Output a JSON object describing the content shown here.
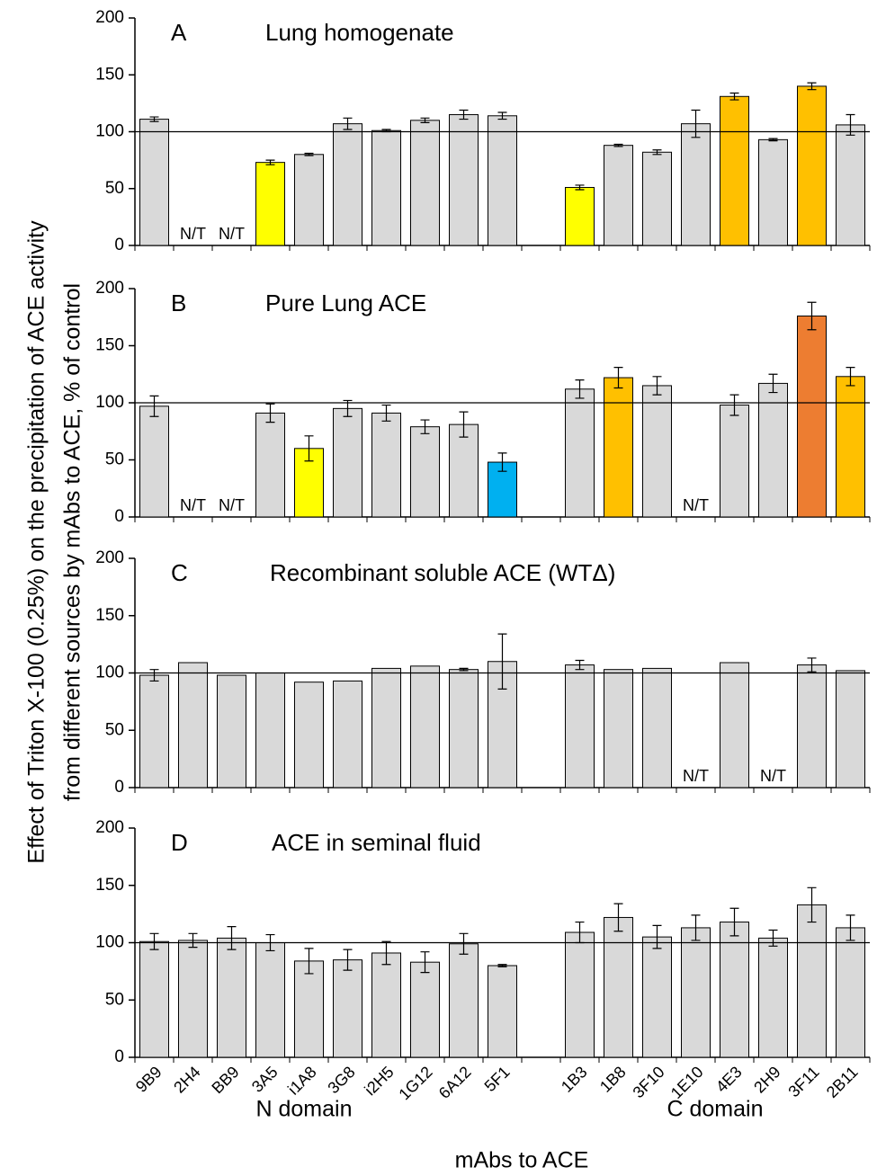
{
  "ylabel": [
    "Effect of Triton  X-100  (0.25%)  on the precipitation of  ACE activity",
    "from different sources by mAbs to ACE, % of  control"
  ],
  "chart_data": [
    {
      "type": "bar",
      "letter": "A",
      "title": "Lung homogenate",
      "values": [
        111,
        null,
        null,
        73,
        80,
        107,
        101,
        110,
        115,
        114,
        null,
        51,
        88,
        82,
        107,
        131,
        93,
        140,
        106
      ],
      "errors": [
        2,
        null,
        null,
        2,
        1,
        5,
        1,
        2,
        4,
        3,
        null,
        2,
        1,
        2,
        12,
        3,
        1,
        3,
        9
      ],
      "value_labels": [
        null,
        "N/T",
        "N/T",
        null,
        null,
        null,
        null,
        null,
        null,
        null,
        null,
        null,
        null,
        null,
        null,
        null,
        null,
        null,
        null
      ],
      "colors": [
        "#d9d9d9",
        "#d9d9d9",
        "#d9d9d9",
        "#ffff00",
        "#d9d9d9",
        "#d9d9d9",
        "#d9d9d9",
        "#d9d9d9",
        "#d9d9d9",
        "#d9d9d9",
        "#d9d9d9",
        "#ffff00",
        "#d9d9d9",
        "#d9d9d9",
        "#d9d9d9",
        "#ffc000",
        "#d9d9d9",
        "#ffc000",
        "#d9d9d9"
      ],
      "reference_line": 100,
      "ylim": [
        0,
        200
      ],
      "yticks": [
        0,
        50,
        100,
        150,
        200
      ]
    },
    {
      "type": "bar",
      "letter": "B",
      "title": "Pure Lung ACE",
      "values": [
        97,
        null,
        null,
        91,
        60,
        95,
        91,
        79,
        81,
        48,
        null,
        112,
        122,
        115,
        null,
        98,
        117,
        176,
        123
      ],
      "errors": [
        9,
        null,
        null,
        8,
        11,
        7,
        7,
        6,
        11,
        8,
        null,
        8,
        9,
        8,
        null,
        9,
        8,
        12,
        8
      ],
      "value_labels": [
        null,
        "N/T",
        "N/T",
        null,
        null,
        null,
        null,
        null,
        null,
        null,
        null,
        null,
        null,
        null,
        "N/T",
        null,
        null,
        null,
        null
      ],
      "colors": [
        "#d9d9d9",
        "#d9d9d9",
        "#d9d9d9",
        "#d9d9d9",
        "#ffff00",
        "#d9d9d9",
        "#d9d9d9",
        "#d9d9d9",
        "#d9d9d9",
        "#00b0f0",
        "#d9d9d9",
        "#d9d9d9",
        "#ffc000",
        "#d9d9d9",
        "#d9d9d9",
        "#d9d9d9",
        "#d9d9d9",
        "#ed7d31",
        "#ffc000"
      ],
      "reference_line": 100,
      "ylim": [
        0,
        200
      ],
      "yticks": [
        0,
        50,
        100,
        150,
        200
      ]
    },
    {
      "type": "bar",
      "letter": "C",
      "title": "Recombinant soluble ACE (WTΔ)",
      "values": [
        98,
        109,
        98,
        100,
        92,
        93,
        104,
        106,
        103,
        110,
        null,
        107,
        103,
        104,
        null,
        109,
        null,
        107,
        102
      ],
      "errors": [
        5,
        null,
        null,
        null,
        null,
        null,
        null,
        null,
        1,
        24,
        null,
        4,
        null,
        null,
        null,
        null,
        null,
        6,
        null
      ],
      "value_labels": [
        null,
        null,
        null,
        null,
        null,
        null,
        null,
        null,
        null,
        null,
        null,
        null,
        null,
        null,
        "N/T",
        null,
        "N/T",
        null,
        null
      ],
      "colors": [
        "#d9d9d9",
        "#d9d9d9",
        "#d9d9d9",
        "#d9d9d9",
        "#d9d9d9",
        "#d9d9d9",
        "#d9d9d9",
        "#d9d9d9",
        "#d9d9d9",
        "#d9d9d9",
        "#d9d9d9",
        "#d9d9d9",
        "#d9d9d9",
        "#d9d9d9",
        "#d9d9d9",
        "#d9d9d9",
        "#d9d9d9",
        "#d9d9d9",
        "#d9d9d9"
      ],
      "reference_line": 100,
      "ylim": [
        0,
        200
      ],
      "yticks": [
        0,
        50,
        100,
        150,
        200
      ]
    },
    {
      "type": "bar",
      "letter": "D",
      "title": "ACE in seminal fluid",
      "categories": [
        "9B9",
        "2H4",
        "BB9",
        "3A5",
        "i1A8",
        "3G8",
        "i2H5",
        "1G12",
        "6A12",
        "5F1",
        null,
        "1B3",
        "1B8",
        "3F10",
        "1E10",
        "4E3",
        "2H9",
        "3F11",
        "2B11"
      ],
      "values": [
        101,
        102,
        104,
        100,
        84,
        85,
        91,
        83,
        99,
        80,
        null,
        109,
        122,
        105,
        113,
        118,
        104,
        133,
        113
      ],
      "errors": [
        7,
        6,
        10,
        7,
        11,
        9,
        10,
        9,
        9,
        1,
        null,
        9,
        12,
        10,
        11,
        12,
        7,
        15,
        11
      ],
      "colors": [
        "#d9d9d9",
        "#d9d9d9",
        "#d9d9d9",
        "#d9d9d9",
        "#d9d9d9",
        "#d9d9d9",
        "#d9d9d9",
        "#d9d9d9",
        "#d9d9d9",
        "#d9d9d9",
        "#d9d9d9",
        "#d9d9d9",
        "#d9d9d9",
        "#d9d9d9",
        "#d9d9d9",
        "#d9d9d9",
        "#d9d9d9",
        "#d9d9d9",
        "#d9d9d9"
      ],
      "reference_line": 100,
      "ylim": [
        0,
        200
      ],
      "yticks": [
        0,
        50,
        100,
        150,
        200
      ],
      "group_labels": [
        "N domain",
        "C domain"
      ],
      "xlabel": "mAbs to ACE"
    }
  ]
}
